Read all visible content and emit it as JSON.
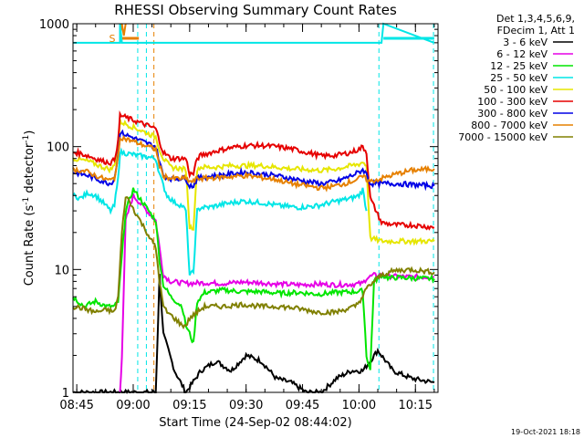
{
  "chart_data": {
    "type": "line",
    "title": "RHESSI Observing Summary Count Rates",
    "xlabel": "Start Time (24-Sep-02 08:44:02)",
    "ylabel_main": "Count Rate (s",
    "ylabel_sup1": "-1",
    "ylabel_mid": " detector",
    "ylabel_sup2": "-1",
    "ylabel_end": ")",
    "y_scale": "log",
    "ylim": [
      1,
      1000
    ],
    "xlim_minutes_after_0844_02": [
      0,
      97
    ],
    "x_ticks": [
      {
        "label": "08:45",
        "t": 1
      },
      {
        "label": "09:00",
        "t": 16
      },
      {
        "label": "09:15",
        "t": 31
      },
      {
        "label": "09:30",
        "t": 46
      },
      {
        "label": "09:45",
        "t": 61
      },
      {
        "label": "10:00",
        "t": 76
      },
      {
        "label": "10:15",
        "t": 91
      }
    ],
    "y_ticks": [
      {
        "label": "1",
        "v": 1
      },
      {
        "label": "10",
        "v": 10
      },
      {
        "label": "100",
        "v": 100
      },
      {
        "label": "1000",
        "v": 1000
      }
    ],
    "legend_header": [
      "Det 1,3,4,5,6,9,",
      "FDecim 1, Att 1"
    ],
    "legend_position": "right",
    "attenuator_marker": "S",
    "timestamp": "19-Oct-2021 18:18",
    "series": [
      {
        "name": "3 - 6 keV",
        "color": "#000000",
        "x": [
          0,
          12,
          12.5,
          13,
          22,
          23,
          24,
          27,
          30,
          34,
          38,
          42,
          46,
          50,
          54,
          58,
          62,
          66,
          70,
          74,
          77,
          79,
          81,
          85,
          90,
          96
        ],
        "y": [
          1,
          1,
          1,
          1,
          1,
          9,
          3,
          1.5,
          1,
          1.5,
          1.8,
          1.5,
          2,
          1.8,
          1.3,
          1.2,
          1,
          1,
          1.3,
          1.5,
          1.5,
          1.8,
          2.2,
          1.5,
          1.3,
          1.2
        ]
      },
      {
        "name": "6 - 12 keV",
        "color": "#e600e6",
        "x": [
          12.5,
          13,
          14,
          16,
          22,
          23,
          24,
          26,
          30,
          35,
          40,
          45,
          50,
          55,
          60,
          65,
          70,
          75,
          77,
          78,
          80,
          84,
          90,
          96
        ],
        "y": [
          1,
          2,
          25,
          40,
          25,
          15,
          9,
          8,
          7.7,
          7.8,
          7.7,
          7.9,
          7.8,
          7.6,
          7.5,
          7.6,
          7.5,
          7.6,
          7.7,
          8.5,
          9,
          8.8,
          8.7,
          8.7
        ]
      },
      {
        "name": "12 - 25 keV",
        "color": "#00e600",
        "x": [
          0,
          3,
          6,
          9,
          11,
          12,
          14,
          16,
          22,
          23,
          24,
          26,
          29,
          30,
          31,
          32,
          33,
          35,
          40,
          45,
          50,
          55,
          60,
          65,
          70,
          75,
          77,
          78,
          79,
          80,
          82,
          84,
          86,
          90,
          96
        ],
        "y": [
          6,
          5,
          5.5,
          5,
          5,
          5.5,
          30,
          45,
          25,
          12,
          7.5,
          6,
          5,
          3.5,
          3,
          2.5,
          5.5,
          6.5,
          6.8,
          6.6,
          6.6,
          6.4,
          6.5,
          6.3,
          6.5,
          6.6,
          6.7,
          2,
          1.5,
          8,
          9,
          8.5,
          8.6,
          8.5,
          8.4
        ]
      },
      {
        "name": "25 - 50 keV",
        "color": "#00e6e6",
        "x": [
          0,
          2,
          4,
          6,
          8,
          10,
          11,
          12,
          12.5,
          22,
          23,
          24,
          25,
          27,
          29,
          30,
          31,
          32,
          33,
          34,
          36,
          40,
          45,
          50,
          55,
          60,
          65,
          70,
          74,
          76,
          77,
          78
        ],
        "y": [
          40,
          38,
          42,
          40,
          35,
          30,
          33,
          55,
          90,
          80,
          60,
          48,
          40,
          35,
          33,
          30,
          9,
          9.5,
          30,
          32,
          32,
          34,
          36,
          35,
          33,
          32,
          33,
          36,
          38,
          40,
          45,
          30
        ]
      },
      {
        "name": "50 - 100 keV",
        "color": "#e6e600",
        "x": [
          0,
          2,
          4,
          6,
          8,
          10,
          11,
          12,
          12.5,
          22,
          23,
          24,
          26,
          29,
          30,
          31,
          32,
          33,
          34,
          38,
          42,
          46,
          50,
          54,
          58,
          62,
          66,
          70,
          74,
          76,
          77,
          78,
          79,
          82,
          86,
          90,
          96
        ],
        "y": [
          80,
          78,
          76,
          72,
          68,
          65,
          70,
          95,
          160,
          120,
          95,
          80,
          68,
          66,
          65,
          22,
          22,
          66,
          68,
          68,
          70,
          70,
          70,
          68,
          66,
          65,
          64,
          66,
          70,
          72,
          75,
          70,
          18,
          17,
          17,
          17,
          17
        ]
      },
      {
        "name": "100 - 300 keV",
        "color": "#e60000",
        "x": [
          0,
          2,
          4,
          6,
          8,
          10,
          11,
          12,
          12.5,
          22,
          23,
          24,
          26,
          29,
          30,
          31,
          32,
          33,
          34,
          38,
          42,
          46,
          50,
          54,
          58,
          62,
          66,
          70,
          74,
          76,
          77,
          78,
          79,
          82,
          86,
          90,
          96
        ],
        "y": [
          90,
          88,
          84,
          80,
          76,
          74,
          78,
          110,
          180,
          140,
          110,
          90,
          80,
          80,
          80,
          60,
          60,
          80,
          85,
          92,
          98,
          102,
          102,
          100,
          96,
          90,
          84,
          85,
          90,
          95,
          100,
          90,
          38,
          24,
          23,
          23,
          22
        ]
      },
      {
        "name": "300 - 800 keV",
        "color": "#0000e6",
        "x": [
          0,
          2,
          4,
          6,
          8,
          10,
          11,
          12,
          12.5,
          22,
          23,
          24,
          26,
          29,
          30,
          31,
          32,
          33,
          34,
          38,
          42,
          46,
          50,
          54,
          58,
          62,
          66,
          70,
          74,
          76,
          77,
          78,
          79,
          82,
          86,
          90,
          96
        ],
        "y": [
          62,
          60,
          58,
          55,
          52,
          50,
          55,
          85,
          130,
          100,
          75,
          58,
          55,
          55,
          55,
          48,
          48,
          55,
          56,
          58,
          60,
          62,
          60,
          58,
          55,
          52,
          50,
          52,
          58,
          62,
          65,
          60,
          50,
          50,
          50,
          49,
          48
        ]
      },
      {
        "name": "800 - 7000 keV",
        "color": "#e68000",
        "x": [
          0,
          2,
          4,
          6,
          8,
          10,
          11,
          12,
          12.5,
          22,
          23,
          24,
          26,
          29,
          30,
          31,
          32,
          33,
          34,
          38,
          42,
          46,
          50,
          54,
          58,
          62,
          66,
          70,
          74,
          76,
          77,
          78,
          79,
          82,
          86,
          90,
          96
        ],
        "y": [
          65,
          64,
          62,
          58,
          55,
          53,
          56,
          80,
          120,
          95,
          70,
          58,
          55,
          55,
          55,
          52,
          52,
          55,
          55,
          56,
          57,
          58,
          56,
          54,
          50,
          48,
          46,
          48,
          52,
          55,
          57,
          54,
          52,
          55,
          60,
          64,
          66
        ]
      },
      {
        "name": "7000 - 15000 keV",
        "color": "#808000",
        "x": [
          0,
          3,
          6,
          9,
          11,
          12,
          13,
          14,
          22,
          23,
          24,
          25,
          27,
          29,
          30,
          31,
          33,
          35,
          40,
          45,
          50,
          55,
          60,
          65,
          70,
          75,
          77,
          78,
          80,
          82,
          84,
          86,
          90,
          96
        ],
        "y": [
          5,
          4.8,
          4.5,
          4.7,
          4.5,
          6,
          20,
          40,
          15,
          8,
          5,
          4.5,
          4,
          3.5,
          3.5,
          4,
          4.5,
          5,
          5,
          5.2,
          5,
          5,
          4.8,
          4.5,
          4.5,
          5,
          6,
          7,
          8,
          9,
          9.5,
          9.8,
          10,
          9.5
        ]
      }
    ],
    "spike_series": [
      {
        "color": "#e68000",
        "x": [
          12.5,
          13,
          13.5,
          14
        ],
        "y": [
          800,
          1000,
          800,
          1000
        ]
      },
      {
        "color": "#00e6e6",
        "x": [
          0,
          12.5,
          12.5,
          13,
          82,
          82.5,
          96
        ],
        "y": [
          700,
          700,
          1000,
          700,
          700,
          1000,
          700
        ]
      }
    ],
    "attenuator_periods": [
      [
        12.5,
        17.5
      ],
      [
        82.5,
        96
      ]
    ],
    "vertical_markers": [
      {
        "t": 17.2,
        "color": "#00e6e6"
      },
      {
        "t": 19.5,
        "color": "#00e6e6"
      },
      {
        "t": 21.5,
        "color": "#e68000"
      },
      {
        "t": 81.3,
        "color": "#00e6e6"
      },
      {
        "t": 95.8,
        "color": "#00e6e6"
      }
    ]
  }
}
